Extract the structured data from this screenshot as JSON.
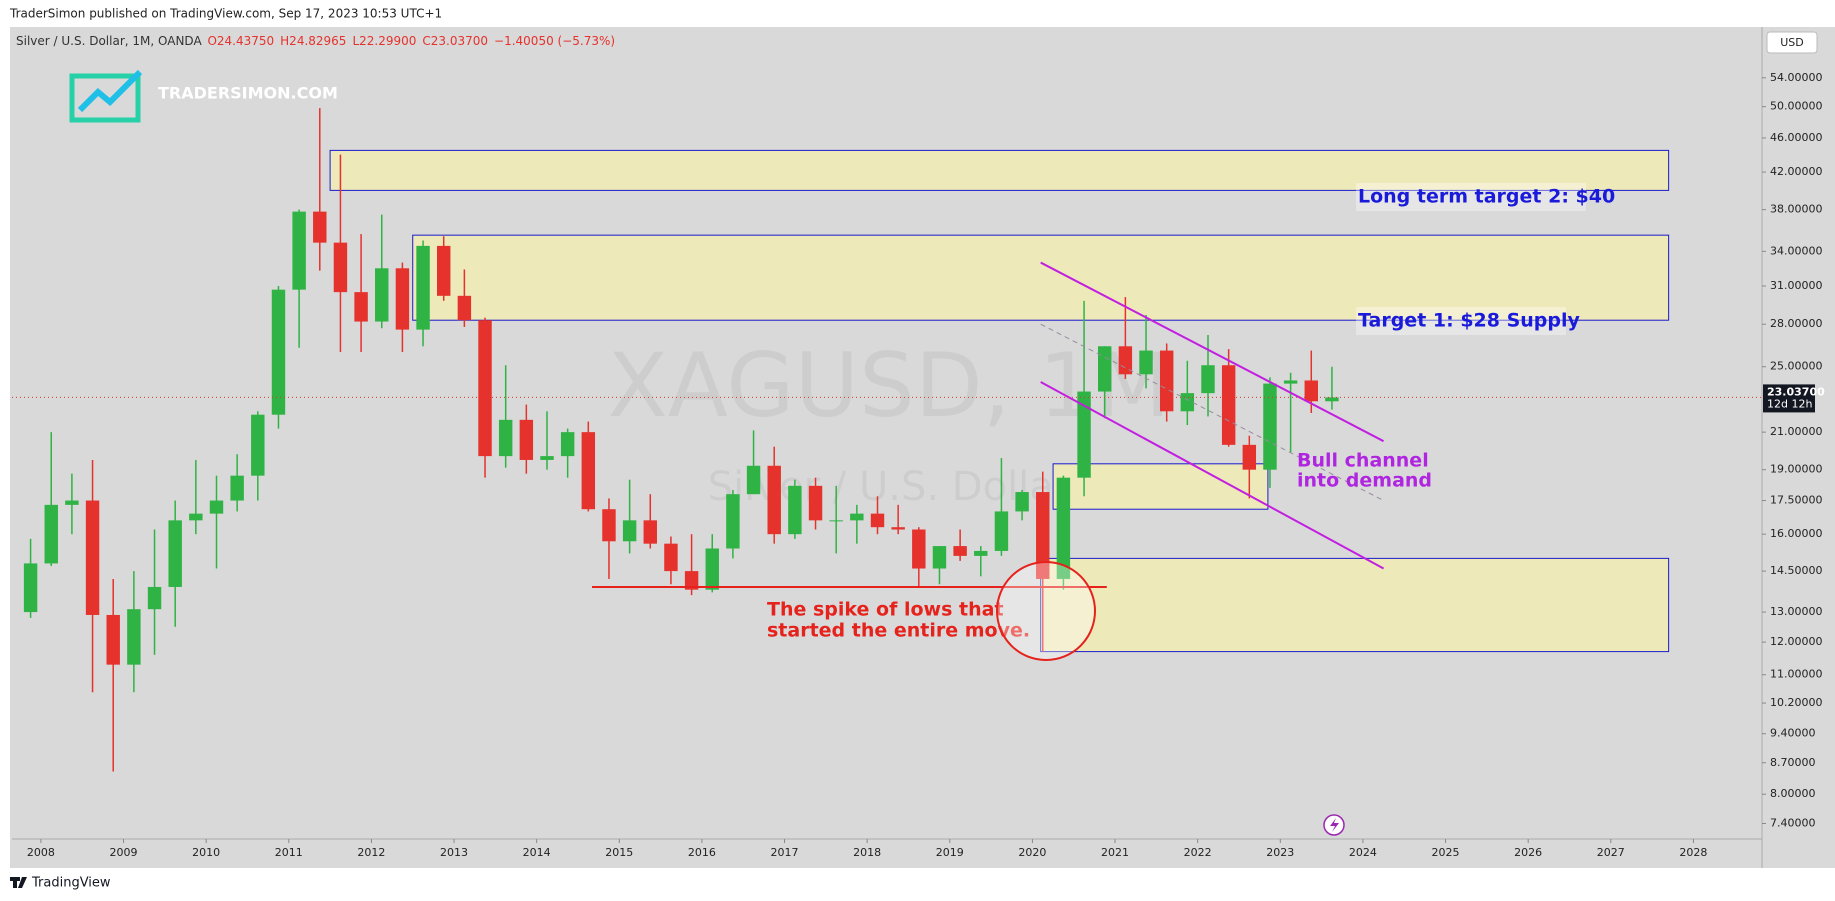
{
  "header": {
    "publisher": "TraderSimon published on TradingView.com, Sep 17, 2023 10:53 UTC+1",
    "symbol": "Silver / U.S. Dollar, 1M, OANDA",
    "ohlc": [
      "O24.43750",
      "H24.82965",
      "L22.29900",
      "C23.03700",
      "−1.40050 (−5.73%)"
    ]
  },
  "currency_button": "USD",
  "logo": "TRADERSIMON.COM",
  "watermark": {
    "symbol": "XAGUSD, 1M",
    "description": "Silver / U.S. Dollar"
  },
  "chart_data": {
    "type": "candlestick",
    "log_scale": true,
    "up_color": "#2fb344",
    "down_color": "#e5322d",
    "x": [
      2007.875,
      2008.125,
      2008.375,
      2008.625,
      2008.875,
      2009.125,
      2009.375,
      2009.625,
      2009.875,
      2010.125,
      2010.375,
      2010.625,
      2010.875,
      2011.125,
      2011.375,
      2011.625,
      2011.875,
      2012.125,
      2012.375,
      2012.625,
      2012.875,
      2013.125,
      2013.375,
      2013.625,
      2013.875,
      2014.125,
      2014.375,
      2014.625,
      2014.875,
      2015.125,
      2015.375,
      2015.625,
      2015.875,
      2016.125,
      2016.375,
      2016.625,
      2016.875,
      2017.125,
      2017.375,
      2017.625,
      2017.875,
      2018.125,
      2018.375,
      2018.625,
      2018.875,
      2019.125,
      2019.375,
      2019.625,
      2019.875,
      2020.125,
      2020.375,
      2020.625,
      2020.875,
      2021.125,
      2021.375,
      2021.625,
      2021.875,
      2022.125,
      2022.375,
      2022.625,
      2022.875,
      2023.125,
      2023.375,
      2023.625
    ],
    "open": [
      13.0,
      14.8,
      17.3,
      17.5,
      12.9,
      11.3,
      13.1,
      13.9,
      16.6,
      16.9,
      17.5,
      18.7,
      22.0,
      30.7,
      37.8,
      34.8,
      30.5,
      28.2,
      32.5,
      27.6,
      34.5,
      30.2,
      28.3,
      19.7,
      21.7,
      19.5,
      19.7,
      21.0,
      17.1,
      15.7,
      16.6,
      15.6,
      14.5,
      13.8,
      15.4,
      17.8,
      19.2,
      16.0,
      18.2,
      16.6,
      16.6,
      16.9,
      16.3,
      16.2,
      14.6,
      15.5,
      15.1,
      15.3,
      17.0,
      17.9,
      14.2,
      18.6,
      23.4,
      26.4,
      24.5,
      26.1,
      22.2,
      23.3,
      25.1,
      20.3,
      19.0,
      23.9,
      24.1,
      22.8
    ],
    "high": [
      15.8,
      21.0,
      18.8,
      19.5,
      14.2,
      14.5,
      16.2,
      17.5,
      19.5,
      18.7,
      19.8,
      22.2,
      31.0,
      38.0,
      49.8,
      44.0,
      35.6,
      37.5,
      33.0,
      35.0,
      35.4,
      32.4,
      28.5,
      25.1,
      22.6,
      22.2,
      21.2,
      21.6,
      17.6,
      18.5,
      17.8,
      15.9,
      16.0,
      16.0,
      18.0,
      21.1,
      20.2,
      18.5,
      18.6,
      18.2,
      17.3,
      17.7,
      17.3,
      16.3,
      15.5,
      16.2,
      15.5,
      19.6,
      18.0,
      18.9,
      18.7,
      29.8,
      26.4,
      30.1,
      28.7,
      26.6,
      25.4,
      27.2,
      26.2,
      20.8,
      24.3,
      24.6,
      26.1,
      25.0
    ],
    "low": [
      12.8,
      14.7,
      16.0,
      10.5,
      8.5,
      10.5,
      11.6,
      12.5,
      16.0,
      14.6,
      17.0,
      17.5,
      21.2,
      26.3,
      32.3,
      26.0,
      26.0,
      27.7,
      26.0,
      26.4,
      29.8,
      27.8,
      18.6,
      19.1,
      18.8,
      19.0,
      18.6,
      17.0,
      14.2,
      15.2,
      15.4,
      14.0,
      13.6,
      13.7,
      15.0,
      17.8,
      15.6,
      15.8,
      16.2,
      15.2,
      15.6,
      16.0,
      16.0,
      13.9,
      14.0,
      14.9,
      14.3,
      15.1,
      16.6,
      11.7,
      13.8,
      17.7,
      21.8,
      24.2,
      23.6,
      21.6,
      21.4,
      21.9,
      20.2,
      17.6,
      18.1,
      19.9,
      22.1,
      22.3
    ],
    "close": [
      14.8,
      17.3,
      17.5,
      12.9,
      11.3,
      13.1,
      13.9,
      16.6,
      16.9,
      17.5,
      18.7,
      22.0,
      30.7,
      37.8,
      34.8,
      30.5,
      28.2,
      32.5,
      27.6,
      34.5,
      30.2,
      28.3,
      19.7,
      21.7,
      19.5,
      19.7,
      21.0,
      17.1,
      15.7,
      16.6,
      15.6,
      14.5,
      13.8,
      15.4,
      17.8,
      19.2,
      16.0,
      18.2,
      16.6,
      16.6,
      16.9,
      16.3,
      16.2,
      14.6,
      15.5,
      15.1,
      15.3,
      17.0,
      17.9,
      14.2,
      18.6,
      23.4,
      26.4,
      24.5,
      26.1,
      22.2,
      23.3,
      25.1,
      20.3,
      19.0,
      23.9,
      24.1,
      22.8,
      23.037
    ],
    "xlim": [
      2007.65,
      2028.83
    ],
    "xticks": [
      2008,
      2009,
      2010,
      2011,
      2012,
      2013,
      2014,
      2015,
      2016,
      2017,
      2018,
      2019,
      2020,
      2021,
      2022,
      2023,
      2024,
      2025,
      2026,
      2027,
      2028
    ],
    "ylim": [
      7.1,
      61.5
    ],
    "yticks": [
      {
        "value": 54,
        "label": "54.00000"
      },
      {
        "value": 50,
        "label": "50.00000"
      },
      {
        "value": 46,
        "label": "46.00000"
      },
      {
        "value": 42,
        "label": "42.00000"
      },
      {
        "value": 38,
        "label": "38.00000"
      },
      {
        "value": 34,
        "label": "34.00000"
      },
      {
        "value": 31,
        "label": "31.00000"
      },
      {
        "value": 28,
        "label": "28.00000"
      },
      {
        "value": 25,
        "label": "25.00000"
      },
      {
        "value": 21,
        "label": "21.00000"
      },
      {
        "value": 19,
        "label": "19.00000"
      },
      {
        "value": 17.5,
        "label": "17.50000"
      },
      {
        "value": 16,
        "label": "16.00000"
      },
      {
        "value": 14.5,
        "label": "14.50000"
      },
      {
        "value": 13,
        "label": "13.00000"
      },
      {
        "value": 12,
        "label": "12.00000"
      },
      {
        "value": 11,
        "label": "11.00000"
      },
      {
        "value": 10.2,
        "label": "10.20000"
      },
      {
        "value": 9.4,
        "label": "9.40000"
      },
      {
        "value": 8.7,
        "label": "8.70000"
      },
      {
        "value": 8,
        "label": "8.00000"
      },
      {
        "value": 7.4,
        "label": "7.40000"
      }
    ],
    "last_price": {
      "value": 23.037,
      "label": "23.03700",
      "countdown": "12d 12h"
    },
    "zones": [
      {
        "x0": 2011.5,
        "x1": 2027.7,
        "y0": 40,
        "y1": 44.5
      },
      {
        "x0": 2012.5,
        "x1": 2027.7,
        "y0": 28.3,
        "y1": 35.5
      },
      {
        "x0": 2020.25,
        "x1": 2022.85,
        "y0": 17.1,
        "y1": 19.3
      },
      {
        "x0": 2020.1,
        "x1": 2027.7,
        "y0": 11.7,
        "y1": 15
      }
    ],
    "lines": [
      {
        "x0": 2014.67,
        "y0": 13.9,
        "x1": 2020.9,
        "y1": 13.9,
        "color": "#e5221b"
      },
      {
        "x0": 2020.1,
        "y0": 33,
        "x1": 2024.25,
        "y1": 20.5,
        "color": "#c21fe0"
      },
      {
        "x0": 2020.1,
        "y0": 24,
        "x1": 2024.25,
        "y1": 14.6,
        "color": "#c21fe0"
      },
      {
        "x0": 2020.1,
        "y0": 28,
        "x1": 2024.25,
        "y1": 17.5,
        "color": "#9a8aa0",
        "dash": true
      }
    ],
    "annotations": [
      "Long term target 2: $40",
      "Target 1: $28 Supply",
      "Bull channel",
      "into demand",
      "The spike of lows that",
      "started the entire move."
    ]
  },
  "footer": "TradingView"
}
